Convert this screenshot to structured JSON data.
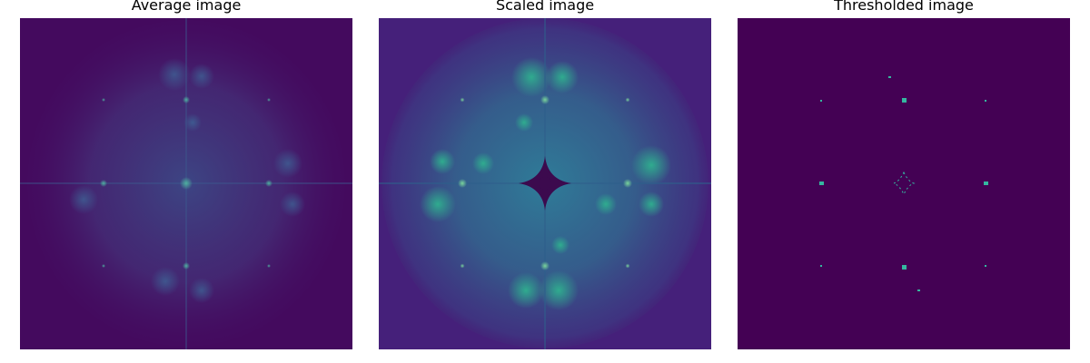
{
  "panels": [
    {
      "title": "Average image"
    },
    {
      "title": "Scaled image"
    },
    {
      "title": "Thresholded image"
    }
  ],
  "colors": {
    "background": "#ffffff",
    "viridis_dark": "#440154",
    "viridis_blue": "#3b528b",
    "viridis_teal": "#21918c",
    "viridis_green": "#35b779"
  }
}
